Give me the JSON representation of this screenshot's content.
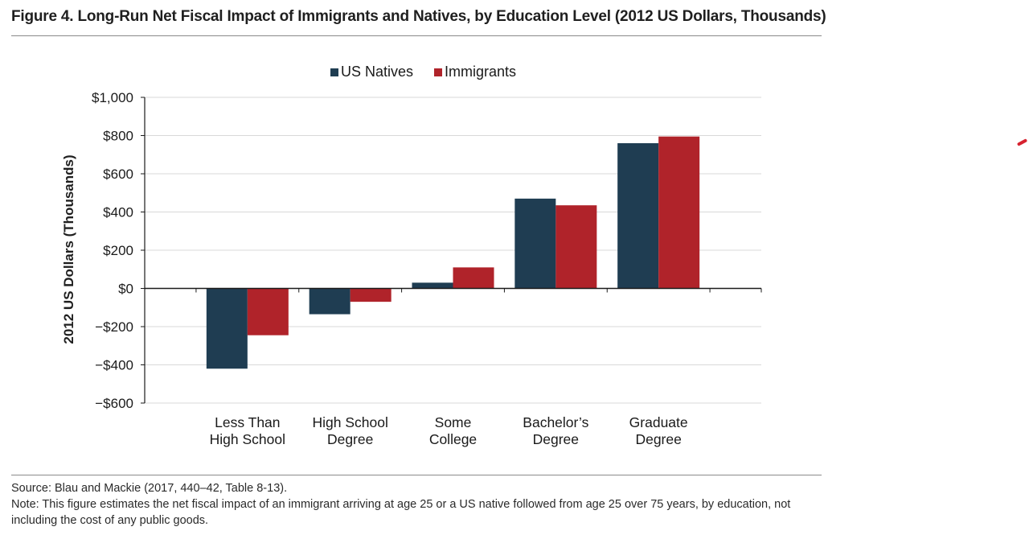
{
  "figure": {
    "title": "Figure 4. Long-Run Net Fiscal Impact of Immigrants and Natives, by Education Level (2012 US Dollars, Thousands)",
    "source": "Source: Blau and Mackie (2017, 440–42, Table 8-13).",
    "note": "Note: This figure estimates the net fiscal impact of an immigrant arriving at age 25 or a US native followed from age 25 over 75 years, by education, not including the cost of any public goods."
  },
  "chart_data": {
    "type": "bar",
    "title": "",
    "ylabel": "2012 US Dollars (Thousands)",
    "xlabel": "",
    "ylim": [
      -600,
      1000
    ],
    "yticks": [
      1000,
      800,
      600,
      400,
      200,
      0,
      -200,
      -400,
      -600
    ],
    "ytick_labels": [
      "$1,000",
      "$800",
      "$600",
      "$400",
      "$200",
      "$0",
      "−$200",
      "−$400",
      "−$600"
    ],
    "grid": true,
    "legend_position": "top-center",
    "categories": [
      [
        "Less Than",
        "High School"
      ],
      [
        "High School",
        "Degree"
      ],
      [
        "Some",
        "College"
      ],
      [
        "Bachelor’s",
        "Degree"
      ],
      [
        "Graduate",
        "Degree"
      ]
    ],
    "series": [
      {
        "name": "US Natives",
        "color": "#1f3d52",
        "values": [
          -420,
          -135,
          30,
          470,
          760
        ]
      },
      {
        "name": "Immigrants",
        "color": "#b0232a",
        "values": [
          -245,
          -70,
          110,
          435,
          795
        ]
      }
    ]
  }
}
